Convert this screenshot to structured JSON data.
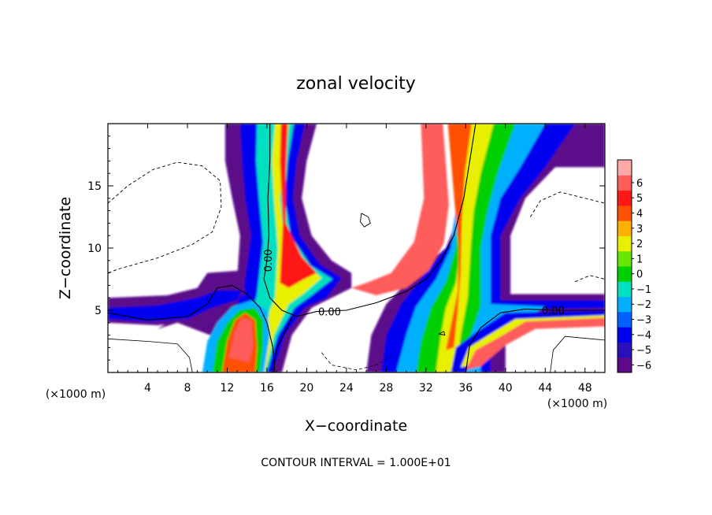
{
  "chart_data": {
    "type": "heatmap",
    "title": "zonal velocity",
    "xlabel": "X−coordinate",
    "ylabel": "Z−coordinate",
    "x_unit_left": "(×1000 m)",
    "x_unit_right": "(×1000 m)",
    "footer": "CONTOUR INTERVAL = 1.000E+01",
    "xlim": [
      0,
      50
    ],
    "ylim": [
      0,
      20
    ],
    "x_ticks": [
      4,
      8,
      12,
      16,
      20,
      24,
      28,
      32,
      36,
      40,
      44,
      48
    ],
    "y_ticks": [
      5,
      10,
      15
    ],
    "colorbar": {
      "min": -6,
      "max": 6,
      "levels": [
        -6,
        -5,
        -4,
        -3,
        -2,
        -1,
        0,
        1,
        2,
        3,
        4,
        5,
        6
      ],
      "colors": [
        "#5c0a8a",
        "#2a10b8",
        "#0000f0",
        "#0060ff",
        "#00b0ff",
        "#00e0c0",
        "#00d000",
        "#66e600",
        "#e8f000",
        "#ffb000",
        "#ff5000",
        "#ff1818",
        "#ff5c5c",
        "#ffa8a8"
      ]
    },
    "contour_labels": [
      {
        "text": "0.00",
        "x": 22.3,
        "z": 4.9
      },
      {
        "text": "0.00",
        "x": 16.1,
        "z": 9.0,
        "rotate": -90
      },
      {
        "text": "0.00",
        "x": 44.8,
        "z": 5.0
      }
    ]
  }
}
